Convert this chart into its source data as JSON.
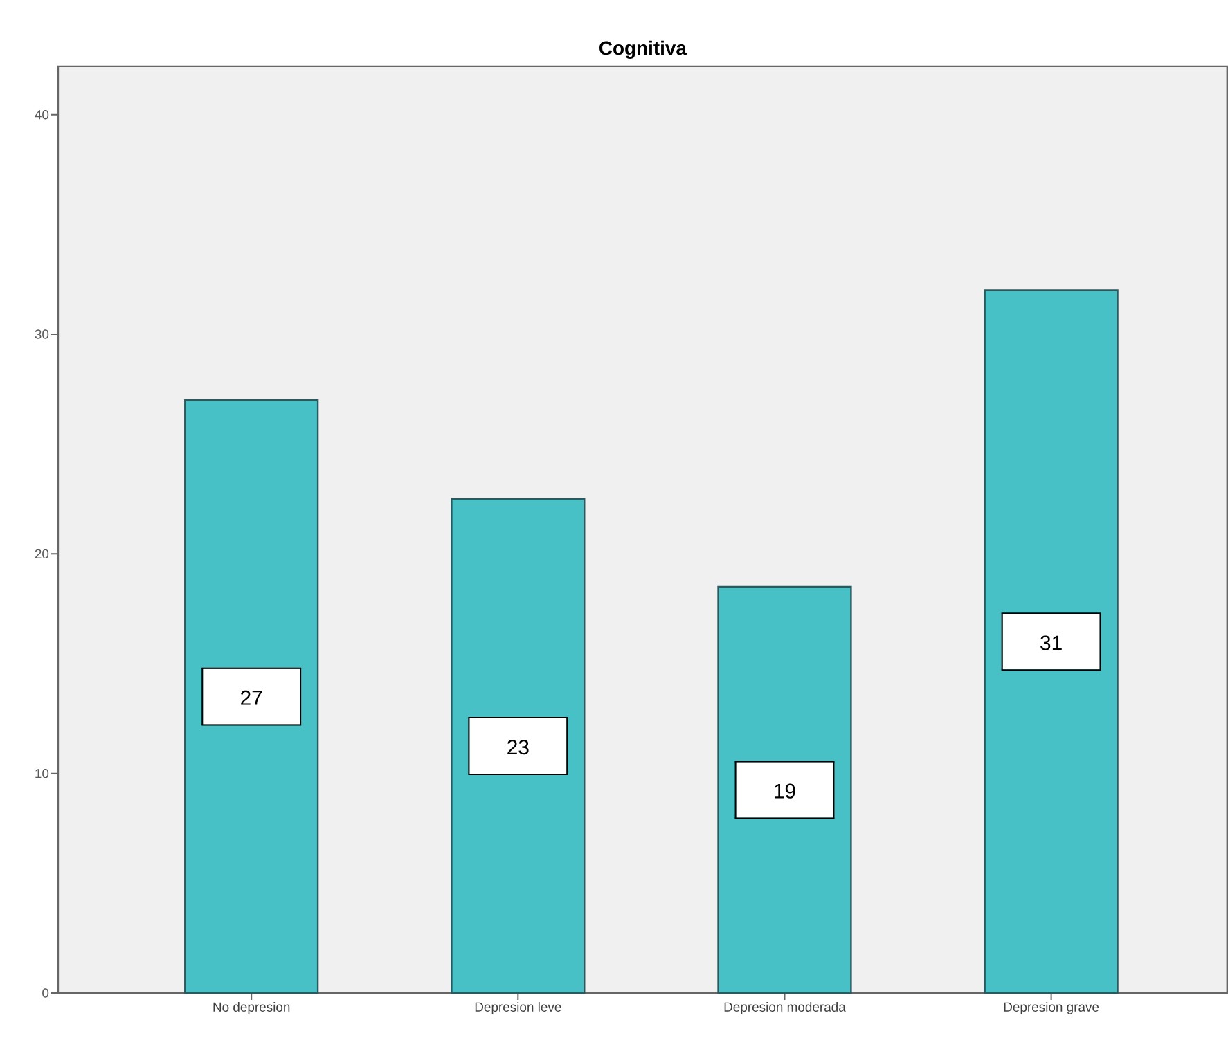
{
  "chart_data": {
    "type": "bar",
    "title": "Cognitiva",
    "categories": [
      "No depresion",
      "Depresion leve",
      "Depresion moderada",
      "Depresion grave"
    ],
    "values": [
      27,
      22.5,
      18.5,
      32
    ],
    "annotations": [
      "27",
      "23",
      "19",
      "31"
    ],
    "color": "#48c1c6",
    "ylim": [
      0,
      42.2
    ],
    "yticks": [
      0,
      10,
      20,
      30,
      40
    ]
  }
}
